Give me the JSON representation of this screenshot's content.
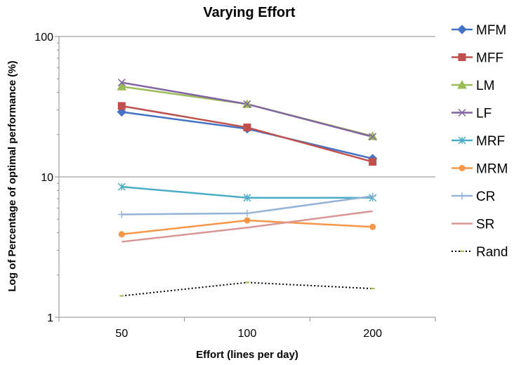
{
  "chart_data": {
    "type": "line",
    "title": "Varying Effort",
    "xlabel": "Effort (lines per day)",
    "ylabel": "Log of Percentage of optimal performance (%)",
    "categories": [
      "50",
      "100",
      "200"
    ],
    "y_scale": "log",
    "ylim": [
      1,
      100
    ],
    "y_ticks": [
      "1",
      "10",
      "100"
    ],
    "grid": "horizontal major gridlines",
    "legend_position": "right",
    "series": [
      {
        "name": "MFM",
        "values": [
          29,
          22,
          13.5
        ],
        "color": "#4472C4",
        "marker": "diamond",
        "dash": "solid"
      },
      {
        "name": "MFF",
        "values": [
          32,
          22.5,
          12.8
        ],
        "color": "#C0504D",
        "marker": "square",
        "dash": "solid"
      },
      {
        "name": "LM",
        "values": [
          44,
          33,
          19.5
        ],
        "color": "#9BBB59",
        "marker": "triangle",
        "dash": "solid"
      },
      {
        "name": "LF",
        "values": [
          47,
          33,
          19.3
        ],
        "color": "#8064A2",
        "marker": "x",
        "dash": "solid"
      },
      {
        "name": "MRF",
        "values": [
          8.5,
          7.1,
          7.1
        ],
        "color": "#4BACC6",
        "marker": "star",
        "dash": "solid"
      },
      {
        "name": "MRM",
        "values": [
          3.9,
          4.9,
          4.4
        ],
        "color": "#F79646",
        "marker": "circle",
        "dash": "solid"
      },
      {
        "name": "CR",
        "values": [
          5.4,
          5.5,
          7.3
        ],
        "color": "#95B3D7",
        "marker": "plus",
        "dash": "solid"
      },
      {
        "name": "SR",
        "values": [
          3.45,
          4.35,
          5.7
        ],
        "color": "#D99694",
        "marker": "none",
        "dash": "solid"
      },
      {
        "name": "Rand",
        "values": [
          1.42,
          1.77,
          1.6
        ],
        "color": "#000000",
        "marker": "dash",
        "dash": "dotted"
      }
    ]
  }
}
